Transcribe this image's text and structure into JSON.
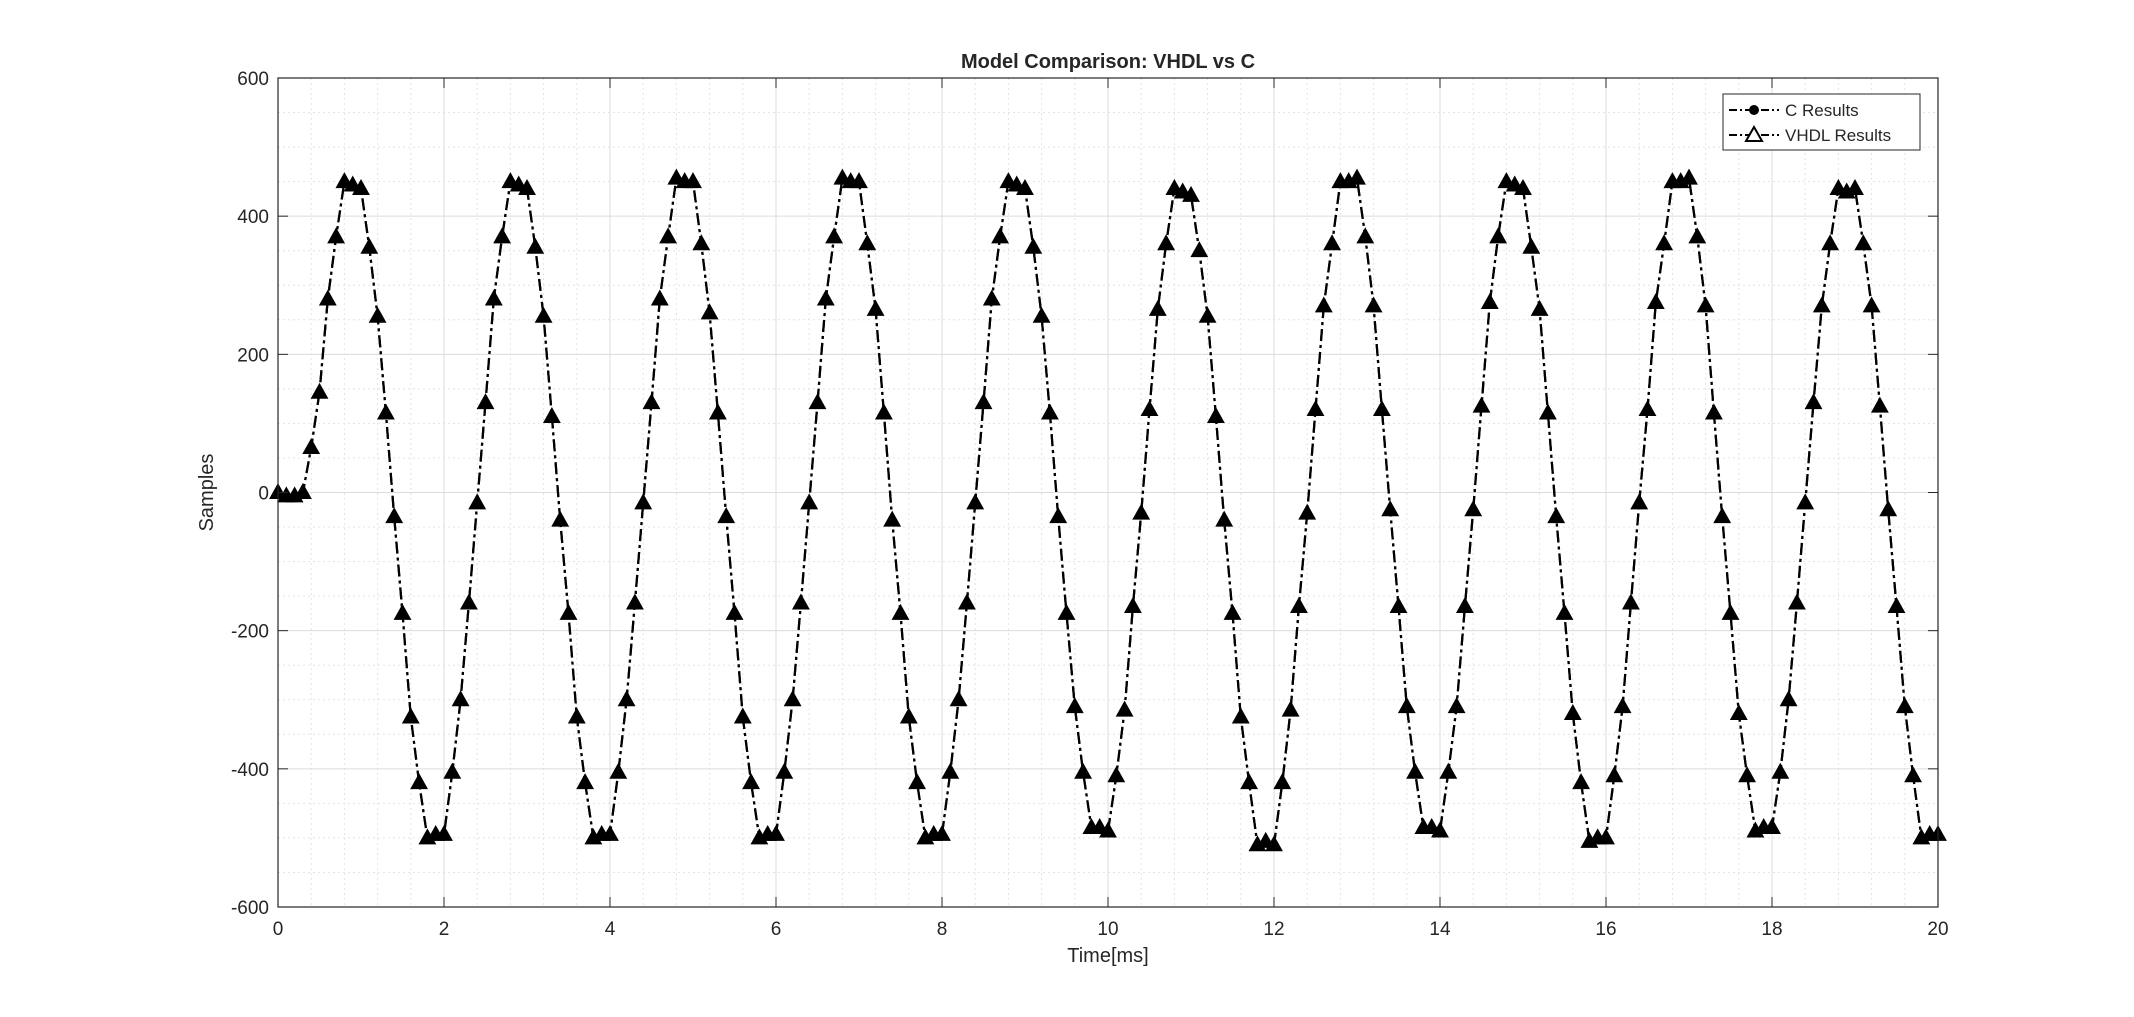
{
  "chart_data": {
    "type": "line",
    "title": "Model Comparison: VHDL vs C",
    "xlabel": "Time[ms]",
    "ylabel": "Samples",
    "xlim": [
      0,
      20
    ],
    "ylim": [
      -600,
      600
    ],
    "xticks": [
      0,
      2,
      4,
      6,
      8,
      10,
      12,
      14,
      16,
      18,
      20
    ],
    "yticks": [
      -600,
      -400,
      -200,
      0,
      200,
      400,
      600
    ],
    "grid": true,
    "minor_grid": true,
    "legend_position": "top-right",
    "x": [
      0,
      0.1,
      0.2,
      0.3,
      0.4,
      0.5,
      0.6,
      0.7,
      0.8,
      0.9,
      1,
      1.1,
      1.2,
      1.3,
      1.4,
      1.5,
      1.6,
      1.7,
      1.8,
      1.9,
      2,
      2.1,
      2.2,
      2.3,
      2.4,
      2.5,
      2.6,
      2.7,
      2.8,
      2.9,
      3,
      3.1,
      3.2,
      3.3,
      3.4,
      3.5,
      3.6,
      3.7,
      3.8,
      3.9,
      4,
      4.1,
      4.2,
      4.3,
      4.4,
      4.5,
      4.6,
      4.7,
      4.8,
      4.9,
      5,
      5.1,
      5.2,
      5.3,
      5.4,
      5.5,
      5.6,
      5.7,
      5.8,
      5.9,
      6,
      6.1,
      6.2,
      6.3,
      6.4,
      6.5,
      6.6,
      6.7,
      6.8,
      6.9,
      7,
      7.1,
      7.2,
      7.3,
      7.4,
      7.5,
      7.6,
      7.7,
      7.8,
      7.9,
      8,
      8.1,
      8.2,
      8.3,
      8.4,
      8.5,
      8.6,
      8.7,
      8.8,
      8.9,
      9,
      9.1,
      9.2,
      9.3,
      9.4,
      9.5,
      9.6,
      9.7,
      9.8,
      9.9,
      10,
      10.1,
      10.2,
      10.3,
      10.4,
      10.5,
      10.6,
      10.7,
      10.8,
      10.9,
      11,
      11.1,
      11.2,
      11.3,
      11.4,
      11.5,
      11.6,
      11.7,
      11.8,
      11.9,
      12,
      12.1,
      12.2,
      12.3,
      12.4,
      12.5,
      12.6,
      12.7,
      12.8,
      12.9,
      13,
      13.1,
      13.2,
      13.3,
      13.4,
      13.5,
      13.6,
      13.7,
      13.8,
      13.9,
      14,
      14.1,
      14.2,
      14.3,
      14.4,
      14.5,
      14.6,
      14.7,
      14.8,
      14.9,
      15,
      15.1,
      15.2,
      15.3,
      15.4,
      15.5,
      15.6,
      15.7,
      15.8,
      15.9,
      16,
      16.1,
      16.2,
      16.3,
      16.4,
      16.5,
      16.6,
      16.7,
      16.8,
      16.9,
      17,
      17.1,
      17.2,
      17.3,
      17.4,
      17.5,
      17.6,
      17.7,
      17.8,
      17.9,
      18,
      18.1,
      18.2,
      18.3,
      18.4,
      18.5,
      18.6,
      18.7,
      18.8,
      18.9,
      19,
      19.1,
      19.2,
      19.3,
      19.4,
      19.5,
      19.6,
      19.7,
      19.8,
      19.9,
      20
    ],
    "series": [
      {
        "name": "C Results",
        "marker": "filled-circle",
        "style": "dash-dot",
        "color": "#000000",
        "values": [
          0,
          -5,
          -5,
          0,
          65,
          145,
          280,
          370,
          450,
          445,
          440,
          355,
          255,
          115,
          -35,
          -175,
          -325,
          -420,
          -500,
          -495,
          -495,
          -405,
          -300,
          -160,
          -15,
          130,
          280,
          370,
          450,
          445,
          440,
          355,
          255,
          110,
          -40,
          -175,
          -325,
          -420,
          -500,
          -495,
          -495,
          -405,
          -300,
          -160,
          -15,
          130,
          280,
          370,
          455,
          450,
          450,
          360,
          260,
          115,
          -35,
          -175,
          -325,
          -420,
          -500,
          -495,
          -495,
          -405,
          -300,
          -160,
          -15,
          130,
          280,
          370,
          455,
          450,
          450,
          360,
          265,
          115,
          -40,
          -175,
          -325,
          -420,
          -500,
          -495,
          -495,
          -405,
          -300,
          -160,
          -15,
          130,
          280,
          370,
          450,
          445,
          440,
          355,
          255,
          115,
          -35,
          -175,
          -310,
          -405,
          -485,
          -485,
          -490,
          -410,
          -315,
          -165,
          -30,
          120,
          265,
          360,
          440,
          435,
          430,
          350,
          255,
          110,
          -40,
          -175,
          -325,
          -420,
          -510,
          -505,
          -510,
          -420,
          -315,
          -165,
          -30,
          120,
          270,
          360,
          450,
          450,
          455,
          370,
          270,
          120,
          -25,
          -165,
          -310,
          -405,
          -485,
          -485,
          -490,
          -405,
          -310,
          -165,
          -25,
          125,
          275,
          370,
          450,
          445,
          440,
          355,
          265,
          115,
          -35,
          -175,
          -320,
          -420,
          -505,
          -500,
          -500,
          -410,
          -310,
          -160,
          -15,
          120,
          275,
          360,
          450,
          450,
          455,
          370,
          270,
          115,
          -35,
          -175,
          -320,
          -410,
          -490,
          -485,
          -485,
          -405,
          -300,
          -160,
          -15,
          130,
          270,
          360,
          440,
          435,
          440,
          360,
          270,
          125,
          -25,
          -165,
          -310,
          -410,
          -500,
          -495,
          -495
        ]
      },
      {
        "name": "VHDL Results",
        "marker": "triangle",
        "style": "dash-dot",
        "color": "#000000",
        "values": [
          0,
          -5,
          -5,
          0,
          65,
          145,
          280,
          370,
          450,
          445,
          440,
          355,
          255,
          115,
          -35,
          -175,
          -325,
          -420,
          -500,
          -495,
          -495,
          -405,
          -300,
          -160,
          -15,
          130,
          280,
          370,
          450,
          445,
          440,
          355,
          255,
          110,
          -40,
          -175,
          -325,
          -420,
          -500,
          -495,
          -495,
          -405,
          -300,
          -160,
          -15,
          130,
          280,
          370,
          455,
          450,
          450,
          360,
          260,
          115,
          -35,
          -175,
          -325,
          -420,
          -500,
          -495,
          -495,
          -405,
          -300,
          -160,
          -15,
          130,
          280,
          370,
          455,
          450,
          450,
          360,
          265,
          115,
          -40,
          -175,
          -325,
          -420,
          -500,
          -495,
          -495,
          -405,
          -300,
          -160,
          -15,
          130,
          280,
          370,
          450,
          445,
          440,
          355,
          255,
          115,
          -35,
          -175,
          -310,
          -405,
          -485,
          -485,
          -490,
          -410,
          -315,
          -165,
          -30,
          120,
          265,
          360,
          440,
          435,
          430,
          350,
          255,
          110,
          -40,
          -175,
          -325,
          -420,
          -510,
          -505,
          -510,
          -420,
          -315,
          -165,
          -30,
          120,
          270,
          360,
          450,
          450,
          455,
          370,
          270,
          120,
          -25,
          -165,
          -310,
          -405,
          -485,
          -485,
          -490,
          -405,
          -310,
          -165,
          -25,
          125,
          275,
          370,
          450,
          445,
          440,
          355,
          265,
          115,
          -35,
          -175,
          -320,
          -420,
          -505,
          -500,
          -500,
          -410,
          -310,
          -160,
          -15,
          120,
          275,
          360,
          450,
          450,
          455,
          370,
          270,
          115,
          -35,
          -175,
          -320,
          -410,
          -490,
          -485,
          -485,
          -405,
          -300,
          -160,
          -15,
          130,
          270,
          360,
          440,
          435,
          440,
          360,
          270,
          125,
          -25,
          -165,
          -310,
          -410,
          -500,
          -495,
          -495
        ]
      }
    ]
  }
}
